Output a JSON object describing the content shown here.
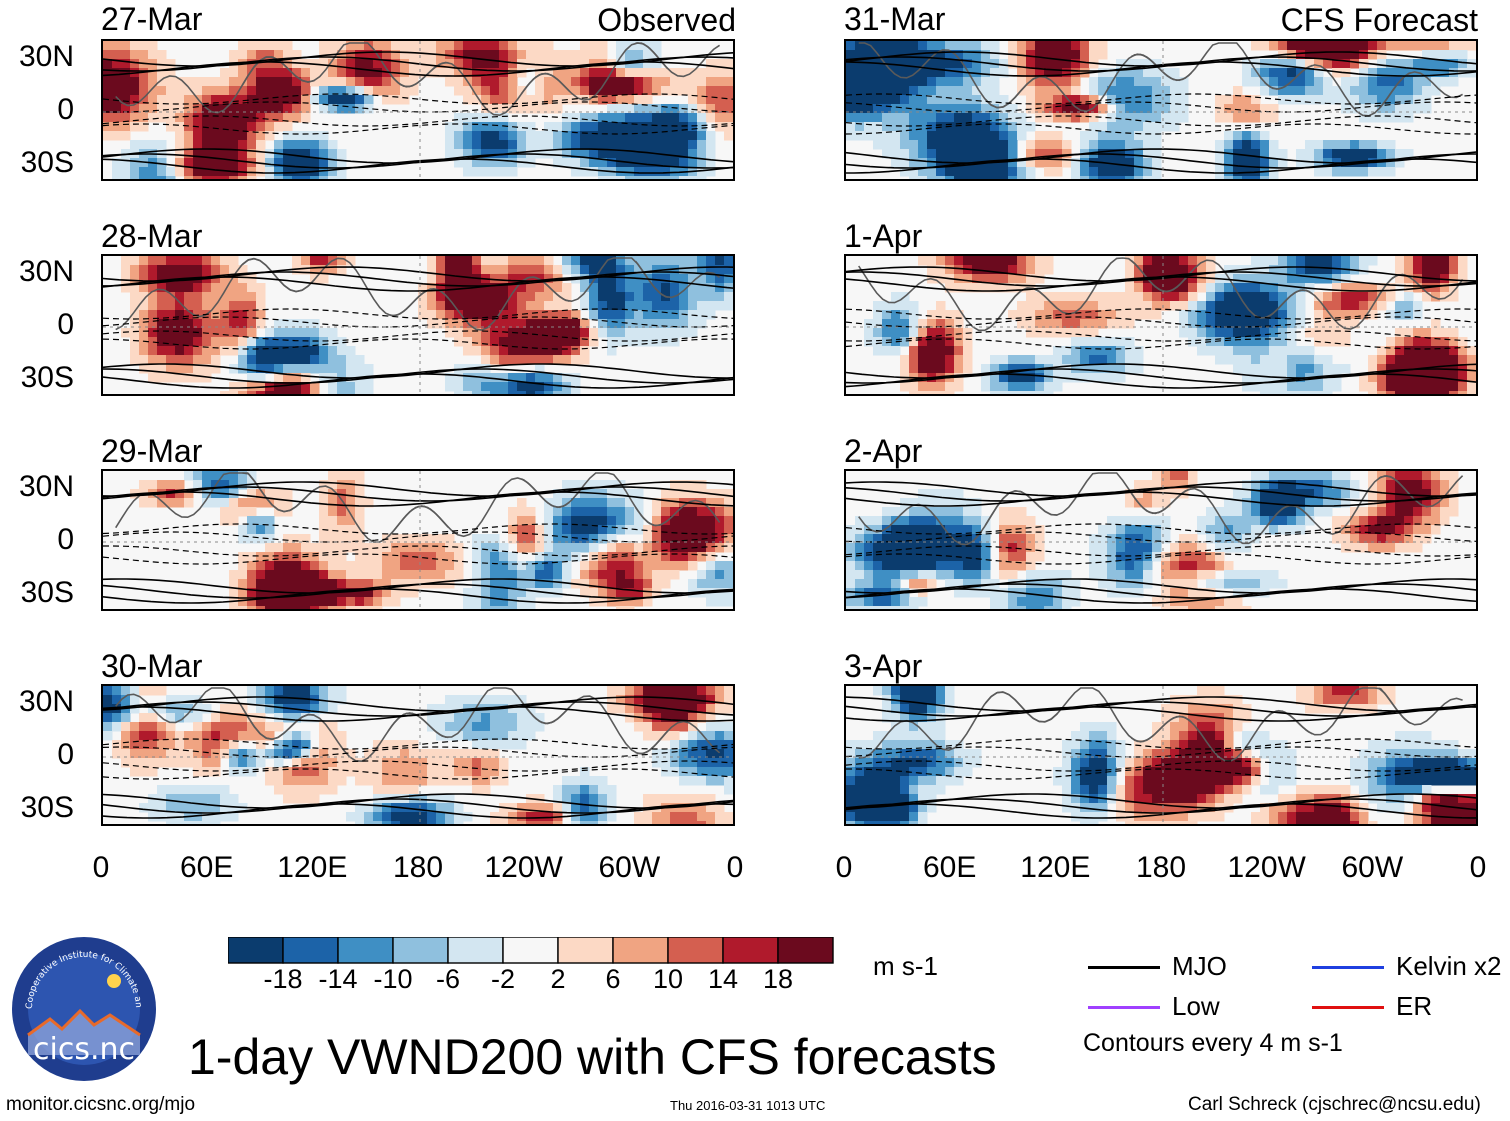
{
  "figure": {
    "title": "1-day VWND200 with CFS forecasts",
    "observed_label": "Observed",
    "forecast_label": "CFS Forecast",
    "units": "m s-1",
    "contour_note": "Contours every 4 m s-1",
    "website": "monitor.cicsnc.org/mjo",
    "timestamp": "Thu 2016-03-31 1013 UTC",
    "author": "Carl Schreck (cjschrec@ncsu.edu)",
    "logo_text": "cics.nc",
    "logo_ring_text": "Cooperative Institute for Climate and Satellites"
  },
  "chart_data": {
    "type": "heatmap",
    "variable": "VWND200",
    "panels_left": [
      "27-Mar",
      "28-Mar",
      "29-Mar",
      "30-Mar"
    ],
    "panels_right": [
      "31-Mar",
      "1-Apr",
      "2-Apr",
      "3-Apr"
    ],
    "lat_ticks": [
      "30N",
      "0",
      "30S"
    ],
    "lat_values": [
      30,
      0,
      -30
    ],
    "lon_ticks": [
      "0",
      "60E",
      "120E",
      "180",
      "120W",
      "60W",
      "0"
    ],
    "lon_values": [
      0,
      60,
      120,
      180,
      240,
      300,
      360
    ],
    "lat_range": [
      -40,
      40
    ],
    "lon_range": [
      0,
      360
    ],
    "colorbar": {
      "ticks": [
        "-18",
        "-14",
        "-10",
        "-6",
        "-2",
        "2",
        "6",
        "10",
        "14",
        "18"
      ],
      "values": [
        -18,
        -14,
        -10,
        -6,
        -2,
        2,
        6,
        10,
        14,
        18
      ],
      "colors": [
        "#0b3c6e",
        "#1c63a8",
        "#3f8fc4",
        "#8fc0de",
        "#d3e6f1",
        "#f7f7f7",
        "#fcd9c5",
        "#f0a482",
        "#d45f50",
        "#b01a2c",
        "#6b0a1e"
      ]
    },
    "legend": [
      {
        "name": "MJO",
        "color": "#000000"
      },
      {
        "name": "Kelvin x2",
        "color": "#1f3fe0"
      },
      {
        "name": "Low",
        "color": "#a040ff"
      },
      {
        "name": "ER",
        "color": "#e01010"
      }
    ]
  }
}
